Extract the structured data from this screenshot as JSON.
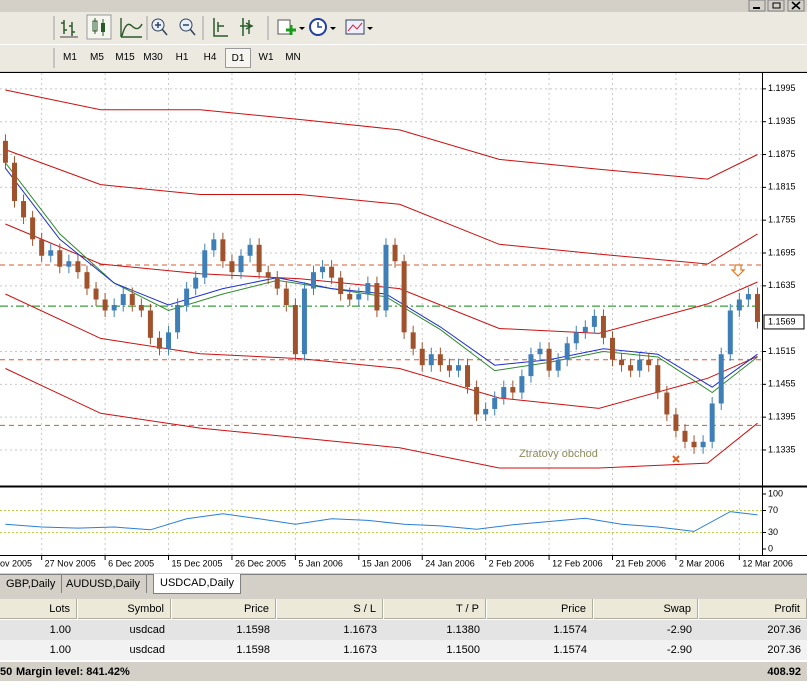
{
  "toolbar": {
    "timeframes": [
      "M1",
      "M5",
      "M15",
      "M30",
      "H1",
      "H4",
      "D1",
      "W1",
      "MN"
    ],
    "active": "D1"
  },
  "chart_data": [
    {
      "type": "candlestick",
      "open": [
        1.19,
        1.186,
        1.179,
        1.176,
        1.172,
        1.169,
        1.17,
        1.167,
        1.168,
        1.166,
        1.163,
        1.161,
        1.159,
        1.16,
        1.162,
        1.16,
        1.159,
        1.154,
        1.152,
        1.155,
        1.16,
        1.163,
        1.165,
        1.17,
        1.172,
        1.168,
        1.166,
        1.169,
        1.171,
        1.166,
        1.165,
        1.163,
        1.16,
        1.151,
        1.163,
        1.166,
        1.167,
        1.165,
        1.162,
        1.161,
        1.162,
        1.164,
        1.159,
        1.171,
        1.168,
        1.155,
        1.152,
        1.149,
        1.151,
        1.149,
        1.148,
        1.149,
        1.145,
        1.14,
        1.141,
        1.143,
        1.145,
        1.144,
        1.147,
        1.151,
        1.152,
        1.148,
        1.15,
        1.153,
        1.155,
        1.156,
        1.158,
        1.154,
        1.15,
        1.149,
        1.148,
        1.15,
        1.149,
        1.144,
        1.14,
        1.137,
        1.135,
        1.134,
        1.135,
        1.142,
        1.151,
        1.159,
        1.161,
        1.162
      ],
      "high": [
        1.1912,
        1.1872,
        1.1802,
        1.1772,
        1.1732,
        1.1712,
        1.1712,
        1.1692,
        1.1692,
        1.1672,
        1.1642,
        1.1622,
        1.1612,
        1.1632,
        1.1632,
        1.1612,
        1.1602,
        1.1552,
        1.1562,
        1.1612,
        1.1642,
        1.1662,
        1.1712,
        1.1732,
        1.1732,
        1.1692,
        1.1702,
        1.1722,
        1.1722,
        1.1672,
        1.1662,
        1.1642,
        1.1612,
        1.1642,
        1.1672,
        1.1682,
        1.1682,
        1.1662,
        1.1632,
        1.1632,
        1.1652,
        1.1652,
        1.1722,
        1.1722,
        1.1692,
        1.1562,
        1.1532,
        1.1522,
        1.1522,
        1.1502,
        1.1502,
        1.1502,
        1.1462,
        1.1422,
        1.1442,
        1.1462,
        1.1462,
        1.1482,
        1.1522,
        1.1532,
        1.1532,
        1.1512,
        1.1542,
        1.1562,
        1.1572,
        1.1592,
        1.1592,
        1.1552,
        1.1512,
        1.1502,
        1.1512,
        1.1512,
        1.1502,
        1.1452,
        1.1412,
        1.1382,
        1.1362,
        1.1362,
        1.1432,
        1.1522,
        1.1602,
        1.1622,
        1.1632,
        1.1632
      ],
      "low": [
        1.1848,
        1.1778,
        1.1748,
        1.1708,
        1.1678,
        1.1678,
        1.1658,
        1.1658,
        1.1648,
        1.1618,
        1.1598,
        1.1578,
        1.1578,
        1.1588,
        1.1588,
        1.1578,
        1.1528,
        1.1508,
        1.1508,
        1.1538,
        1.1588,
        1.1618,
        1.1638,
        1.1688,
        1.1668,
        1.1648,
        1.1648,
        1.1678,
        1.1648,
        1.1638,
        1.1618,
        1.1588,
        1.1498,
        1.1498,
        1.1618,
        1.1648,
        1.1638,
        1.1608,
        1.1598,
        1.1598,
        1.1608,
        1.1578,
        1.1578,
        1.1668,
        1.1538,
        1.1508,
        1.1478,
        1.1478,
        1.1478,
        1.1468,
        1.1468,
        1.1438,
        1.1388,
        1.1388,
        1.1398,
        1.1418,
        1.1428,
        1.1428,
        1.1458,
        1.1498,
        1.1468,
        1.1468,
        1.1488,
        1.1518,
        1.1538,
        1.1548,
        1.1528,
        1.1488,
        1.1478,
        1.1468,
        1.1468,
        1.1478,
        1.1428,
        1.1388,
        1.1358,
        1.1338,
        1.1328,
        1.1328,
        1.1338,
        1.1408,
        1.1498,
        1.1578,
        1.1598,
        1.1557
      ],
      "close": [
        1.186,
        1.179,
        1.176,
        1.172,
        1.169,
        1.17,
        1.167,
        1.168,
        1.166,
        1.163,
        1.161,
        1.159,
        1.16,
        1.162,
        1.16,
        1.159,
        1.154,
        1.152,
        1.155,
        1.16,
        1.163,
        1.165,
        1.17,
        1.172,
        1.168,
        1.166,
        1.169,
        1.171,
        1.166,
        1.165,
        1.163,
        1.16,
        1.151,
        1.163,
        1.166,
        1.167,
        1.165,
        1.162,
        1.161,
        1.162,
        1.164,
        1.159,
        1.171,
        1.168,
        1.155,
        1.152,
        1.149,
        1.151,
        1.149,
        1.148,
        1.149,
        1.145,
        1.14,
        1.141,
        1.143,
        1.145,
        1.144,
        1.147,
        1.151,
        1.152,
        1.148,
        1.15,
        1.153,
        1.155,
        1.156,
        1.158,
        1.154,
        1.15,
        1.149,
        1.148,
        1.15,
        1.149,
        1.144,
        1.14,
        1.137,
        1.135,
        1.134,
        1.135,
        1.142,
        1.151,
        1.159,
        1.161,
        1.162,
        1.1569
      ],
      "up_color": "#3f7fb8",
      "down_color": "#a0522d",
      "xlim": [
        -0.6,
        83.5
      ],
      "xticks": [
        {
          "value": -3,
          "label": "ov 2005"
        },
        {
          "value": 4,
          "label": "27 Nov 2005"
        },
        {
          "value": 11,
          "label": "6 Dec 2005"
        },
        {
          "value": 18,
          "label": "15 Dec 2005"
        },
        {
          "value": 25,
          "label": "26 Dec 2005"
        },
        {
          "value": 32,
          "label": "5 Jan 2006"
        },
        {
          "value": 39,
          "label": "15 Jan 2006"
        },
        {
          "value": 46,
          "label": "24 Jan 2006"
        },
        {
          "value": 53,
          "label": "2 Feb 2006"
        },
        {
          "value": 60,
          "label": "12 Feb 2006"
        },
        {
          "value": 67,
          "label": "21 Feb 2006"
        },
        {
          "value": 74,
          "label": "2 Mar 2006"
        },
        {
          "value": 81,
          "label": "12 Mar 2006"
        }
      ],
      "ylim": [
        1.1271,
        1.2024
      ],
      "yticks": [
        1.1995,
        1.1935,
        1.1875,
        1.1815,
        1.1755,
        1.1695,
        1.1635,
        1.1515,
        1.1455,
        1.1395,
        1.1335
      ],
      "grid": true,
      "lines": [
        {
          "color": "#cc1010",
          "x": [
            0,
            10.5,
            21.5,
            32.5,
            43.5,
            54.5,
            65.5,
            77.5,
            83
          ],
          "values": [
            1.1993,
            1.1957,
            1.1957,
            1.1939,
            1.192,
            1.1866,
            1.1848,
            1.183,
            1.1875
          ]
        },
        {
          "color": "#cc1010",
          "x": [
            0,
            10.5,
            21.5,
            32.5,
            43.5,
            54.5,
            65.5,
            77.5,
            83
          ],
          "values": [
            1.1884,
            1.182,
            1.1802,
            1.1802,
            1.1784,
            1.1711,
            1.1693,
            1.1675,
            1.173
          ]
        },
        {
          "color": "#cc1010",
          "x": [
            0,
            10.5,
            21.5,
            32.5,
            43.5,
            54.5,
            65.5,
            77.5,
            83
          ],
          "values": [
            1.1748,
            1.1675,
            1.1657,
            1.1648,
            1.163,
            1.1557,
            1.1548,
            1.1602,
            1.1642
          ]
        },
        {
          "color": "#cc1010",
          "x": [
            0,
            10.5,
            21.5,
            32.5,
            43.5,
            54.5,
            65.5,
            77.5,
            83
          ],
          "values": [
            1.162,
            1.1539,
            1.1511,
            1.1502,
            1.1484,
            1.143,
            1.1411,
            1.1466,
            1.1506
          ]
        },
        {
          "color": "#cc1010",
          "x": [
            0,
            10.5,
            21.5,
            32.5,
            43.5,
            54.5,
            65.5,
            77.5,
            83
          ],
          "values": [
            1.1484,
            1.1402,
            1.1375,
            1.1357,
            1.1339,
            1.1302,
            1.1302,
            1.1311,
            1.1384
          ]
        },
        {
          "color": "#2e8b2e",
          "x": [
            0,
            6,
            12,
            18,
            24,
            30,
            36,
            42,
            48,
            54,
            60,
            66,
            72,
            78,
            83
          ],
          "values": [
            1.186,
            1.173,
            1.164,
            1.159,
            1.162,
            1.1645,
            1.163,
            1.1615,
            1.1555,
            1.148,
            1.1495,
            1.1515,
            1.1505,
            1.144,
            1.1505
          ]
        },
        {
          "color": "#1c2fd0",
          "x": [
            0,
            6,
            12,
            18,
            24,
            30,
            36,
            42,
            48,
            54,
            60,
            66,
            72,
            78,
            83
          ],
          "values": [
            1.185,
            1.172,
            1.164,
            1.16,
            1.163,
            1.165,
            1.163,
            1.162,
            1.156,
            1.149,
            1.15,
            1.152,
            1.151,
            1.145,
            1.151
          ]
        }
      ],
      "order_lines": {
        "open_color": "#2f9a2f",
        "sl_color": "#d9582b",
        "tp_color": "#d9582b"
      },
      "annotation": "Ztratovy obchod"
    },
    {
      "type": "line",
      "x": [
        0,
        4,
        8,
        12,
        16,
        20,
        24,
        28,
        32,
        36,
        40,
        44,
        48,
        52,
        56,
        60,
        64,
        68,
        72,
        76,
        80,
        83
      ],
      "values": [
        45,
        40,
        38,
        40,
        35,
        55,
        64,
        55,
        45,
        55,
        52,
        45,
        42,
        36,
        44,
        50,
        56,
        45,
        40,
        32,
        68,
        62
      ],
      "color": "#2a7fd4",
      "ylim": [
        0,
        100
      ],
      "yticks": [
        100,
        70,
        30,
        0
      ],
      "levels": [
        70,
        30
      ],
      "level_color": "#b8d040"
    }
  ],
  "terminal": {
    "tabs": [
      "GBP,Daily",
      "AUDUSD,Daily",
      "USDCAD,Daily"
    ],
    "active_tab": 2,
    "columns": [
      "Lots",
      "Symbol",
      "Price",
      "S / L",
      "T / P",
      "Price",
      "Swap",
      "Profit"
    ],
    "rows": [
      [
        "1.00",
        "usdcad",
        "1.1598",
        "1.1673",
        "1.1380",
        "1.1574",
        "-2.90",
        "207.36"
      ],
      [
        "1.00",
        "usdcad",
        "1.1598",
        "1.1673",
        "1.1500",
        "1.1574",
        "-2.90",
        "207.36"
      ]
    ],
    "footer": {
      "left": "50",
      "margin": "Margin level: 841.42%",
      "total": "408.92"
    }
  }
}
